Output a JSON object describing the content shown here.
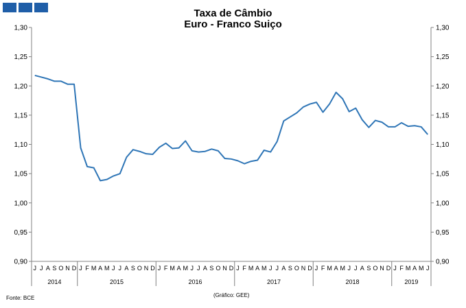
{
  "title_line1": "Taxa de Câmbio",
  "title_line2": "Euro - Franco Suiço",
  "source": "Fonte: BCE",
  "credit": "(Gráfico:  GEE)",
  "colors": {
    "line": "#2e75b6",
    "logo": "#1f5ea8"
  },
  "chart_data": {
    "type": "line",
    "title": "Taxa de Câmbio Euro - Franco Suiço",
    "ylim": [
      0.9,
      1.3
    ],
    "yticks": [
      0.9,
      0.95,
      1.0,
      1.05,
      1.1,
      1.15,
      1.2,
      1.25,
      1.3
    ],
    "ytick_labels": [
      "0,90",
      "0,95",
      "1,00",
      "1,05",
      "1,10",
      "1,15",
      "1,20",
      "1,25",
      "1,30"
    ],
    "grid": false,
    "months": [
      "J",
      "J",
      "A",
      "S",
      "O",
      "N",
      "D",
      "J",
      "F",
      "M",
      "A",
      "M",
      "J",
      "J",
      "A",
      "S",
      "O",
      "N",
      "D",
      "J",
      "F",
      "M",
      "A",
      "M",
      "J",
      "J",
      "A",
      "S",
      "O",
      "N",
      "D",
      "J",
      "F",
      "M",
      "A",
      "M",
      "J",
      "J",
      "A",
      "S",
      "O",
      "N",
      "D",
      "J",
      "F",
      "M",
      "A",
      "M",
      "J",
      "J",
      "A",
      "S",
      "O",
      "N",
      "D",
      "J",
      "F",
      "M",
      "A",
      "M",
      "J"
    ],
    "years": [
      {
        "label": "2014",
        "start": 0,
        "count": 7
      },
      {
        "label": "2015",
        "start": 7,
        "count": 12
      },
      {
        "label": "2016",
        "start": 19,
        "count": 12
      },
      {
        "label": "2017",
        "start": 31,
        "count": 12
      },
      {
        "label": "2018",
        "start": 43,
        "count": 12
      },
      {
        "label": "2019",
        "start": 55,
        "count": 6
      }
    ],
    "series": [
      {
        "values": [
          1.218,
          1.215,
          1.212,
          1.208,
          1.208,
          1.203,
          1.203,
          1.094,
          1.062,
          1.06,
          1.038,
          1.04,
          1.046,
          1.05,
          1.078,
          1.091,
          1.088,
          1.084,
          1.083,
          1.095,
          1.102,
          1.093,
          1.094,
          1.106,
          1.089,
          1.087,
          1.088,
          1.092,
          1.089,
          1.076,
          1.075,
          1.072,
          1.067,
          1.071,
          1.073,
          1.09,
          1.087,
          1.105,
          1.14,
          1.147,
          1.154,
          1.164,
          1.169,
          1.172,
          1.155,
          1.169,
          1.189,
          1.178,
          1.156,
          1.162,
          1.142,
          1.129,
          1.141,
          1.138,
          1.13,
          1.13,
          1.137,
          1.131,
          1.132,
          1.13,
          1.117
        ]
      }
    ]
  }
}
